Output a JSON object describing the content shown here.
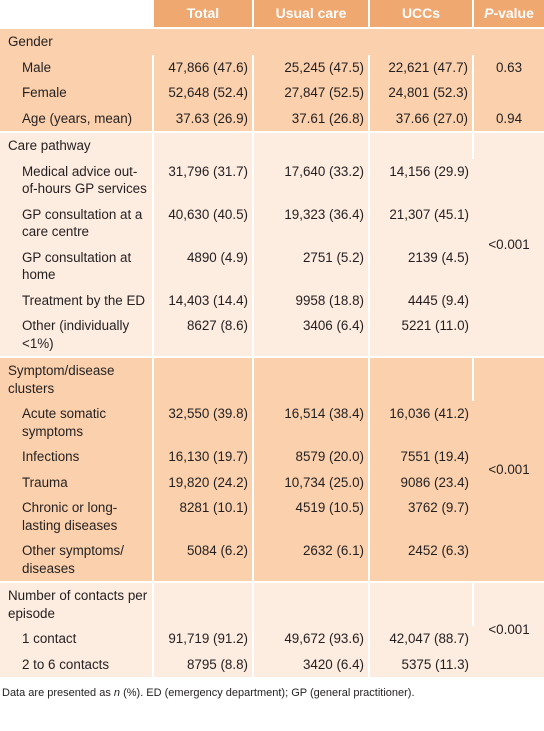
{
  "table": {
    "headers": {
      "total": "Total",
      "usual_care": "Usual care",
      "uccs": "UCCs",
      "p_value_italic": "P",
      "p_value_rest": "-value"
    },
    "gender": {
      "label": "Gender",
      "rows": [
        {
          "label": "Male",
          "total": "47,866 (47.6)",
          "usual": "25,245 (47.5)",
          "uccs": "22,621 (47.7)",
          "p": "0.63"
        },
        {
          "label": "Female",
          "total": "52,648 (52.4)",
          "usual": "27,847 (52.5)",
          "uccs": "24,801 (52.3)",
          "p": ""
        },
        {
          "label": "Age (years, mean)",
          "total": "37.63 (26.9)",
          "usual": "37.61 (26.8)",
          "uccs": "37.66 (27.0)",
          "p": "0.94"
        }
      ]
    },
    "care_pathway": {
      "label": "Care pathway",
      "p": "<0.001",
      "rows": [
        {
          "label": "Medical advice out-of-hours GP services",
          "total": "31,796 (31.7)",
          "usual": "17,640 (33.2)",
          "uccs": "14,156 (29.9)"
        },
        {
          "label": "GP consultation at a care centre",
          "total": "40,630 (40.5)",
          "usual": "19,323 (36.4)",
          "uccs": "21,307 (45.1)"
        },
        {
          "label": "GP consultation at home",
          "total": "4890 (4.9)",
          "usual": "2751 (5.2)",
          "uccs": "2139 (4.5)"
        },
        {
          "label": "Treatment by the ED",
          "total": "14,403 (14.4)",
          "usual": "9958 (18.8)",
          "uccs": "4445 (9.4)"
        },
        {
          "label": "Other (individually <1%)",
          "total": "8627 (8.6)",
          "usual": "3406 (6.4)",
          "uccs": "5221 (11.0)"
        }
      ]
    },
    "symptom_clusters": {
      "label": "Symptom/disease clusters",
      "p": "<0.001",
      "rows": [
        {
          "label": "Acute somatic symptoms",
          "total": "32,550 (39.8)",
          "usual": "16,514 (38.4)",
          "uccs": "16,036 (41.2)"
        },
        {
          "label": "Infections",
          "total": "16,130 (19.7)",
          "usual": "8579 (20.0)",
          "uccs": "7551 (19.4)"
        },
        {
          "label": "Trauma",
          "total": "19,820 (24.2)",
          "usual": "10,734 (25.0)",
          "uccs": "9086 (23.4)"
        },
        {
          "label": "Chronic or long-lasting diseases",
          "total": "8281 (10.1)",
          "usual": "4519 (10.5)",
          "uccs": "3762 (9.7)"
        },
        {
          "label": "Other symptoms/ diseases",
          "total": "5084 (6.2)",
          "usual": "2632 (6.1)",
          "uccs": "2452 (6.3)"
        }
      ]
    },
    "contacts": {
      "label": "Number of contacts per episode",
      "p": "<0.001",
      "rows": [
        {
          "label": "1 contact",
          "total": "91,719 (91.2)",
          "usual": "49,672 (93.6)",
          "uccs": "42,047 (88.7)"
        },
        {
          "label": "2 to 6 contacts",
          "total": "8795 (8.8)",
          "usual": "3420 (6.4)",
          "uccs": "5375 (11.3)"
        }
      ]
    }
  },
  "footnote": {
    "pre": "Data are presented as ",
    "n": "n",
    "post": " (%). ED (emergency department); GP (general practitioner)."
  },
  "colors": {
    "header": "#f0a871",
    "dark_band": "#fbd1ad",
    "light_band": "#fdece0"
  }
}
